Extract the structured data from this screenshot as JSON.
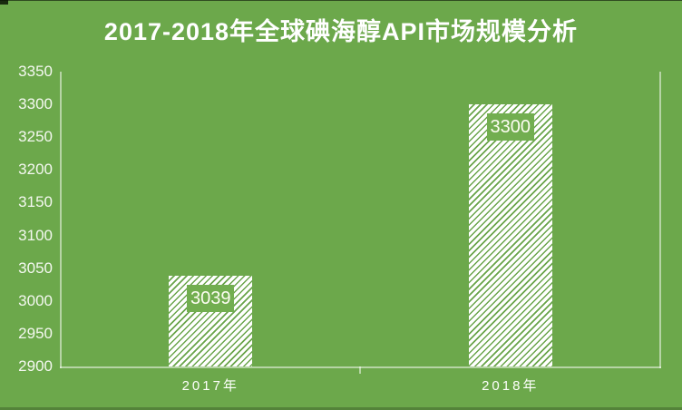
{
  "title": "2017-2018年全球碘海醇API市场规模分析",
  "chart_data": {
    "type": "bar",
    "title": "2017-2018年全球碘海醇API市场规模分析",
    "categories": [
      "2017年",
      "2018年"
    ],
    "values": [
      3039,
      3300
    ],
    "data_labels": [
      "3039",
      "3300"
    ],
    "xlabel": "",
    "ylabel": "",
    "ylim": [
      2900,
      3350
    ],
    "ytick_interval": 50,
    "yticks": [
      3350,
      3300,
      3250,
      3200,
      3150,
      3100,
      3050,
      3000,
      2950,
      2900
    ],
    "grid": "off",
    "legend_position": "none",
    "bar_pattern": "upward-diagonal-hatch",
    "data_label_position": "inside-end"
  },
  "colors": {
    "background": "#6CA84B",
    "title_text": "#FFFFFF",
    "axis_line": "rgba(255,255,255,0.5)",
    "tick_label_text": "#F4F8F0",
    "bar_fill": "#FFFFFF",
    "bar_hatch_line": "#69A44A",
    "data_label_box": "#72AE50",
    "data_label_text": "#FDFDF2"
  }
}
